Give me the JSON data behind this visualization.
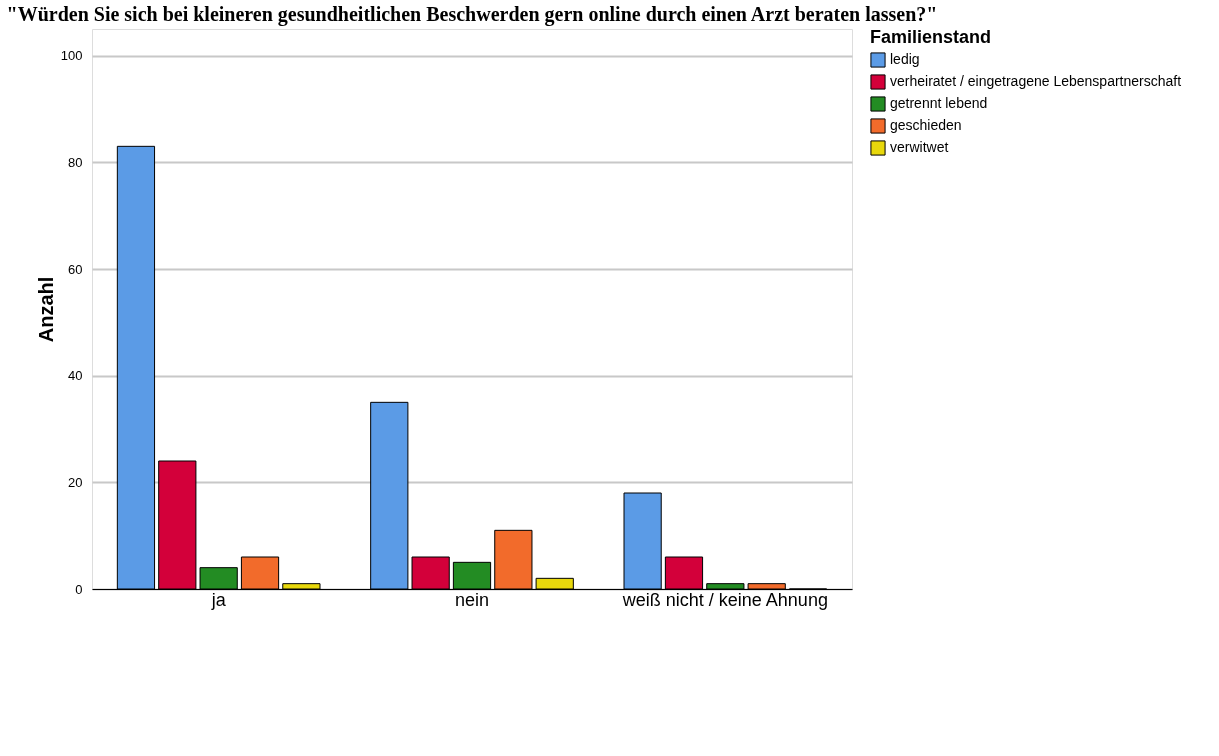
{
  "chart_data": {
    "type": "bar",
    "title": "\"Würden Sie sich bei kleineren gesundheitlichen Beschwerden gern online durch einen Arzt beraten lassen?\"",
    "ylabel": "Anzahl",
    "legend_title": "Familienstand",
    "categories": [
      "ja",
      "nein",
      "weiß nicht / keine Ahnung"
    ],
    "series": [
      {
        "name": "ledig",
        "color": "#5b9be6",
        "values": [
          83,
          35,
          18
        ]
      },
      {
        "name": "verheiratet / eingetragene Lebenspartnerschaft",
        "color": "#d3003a",
        "values": [
          24,
          6,
          6
        ]
      },
      {
        "name": "getrennt lebend",
        "color": "#238c23",
        "values": [
          4,
          5,
          1
        ]
      },
      {
        "name": "geschieden",
        "color": "#f26b2b",
        "values": [
          6,
          11,
          1
        ]
      },
      {
        "name": "verwitwet",
        "color": "#e8d80c",
        "values": [
          1,
          2,
          0
        ]
      }
    ],
    "ylim": [
      0,
      105
    ],
    "yticks": [
      0,
      20,
      40,
      60,
      80,
      100
    ],
    "grid": "y",
    "legend": "right"
  }
}
